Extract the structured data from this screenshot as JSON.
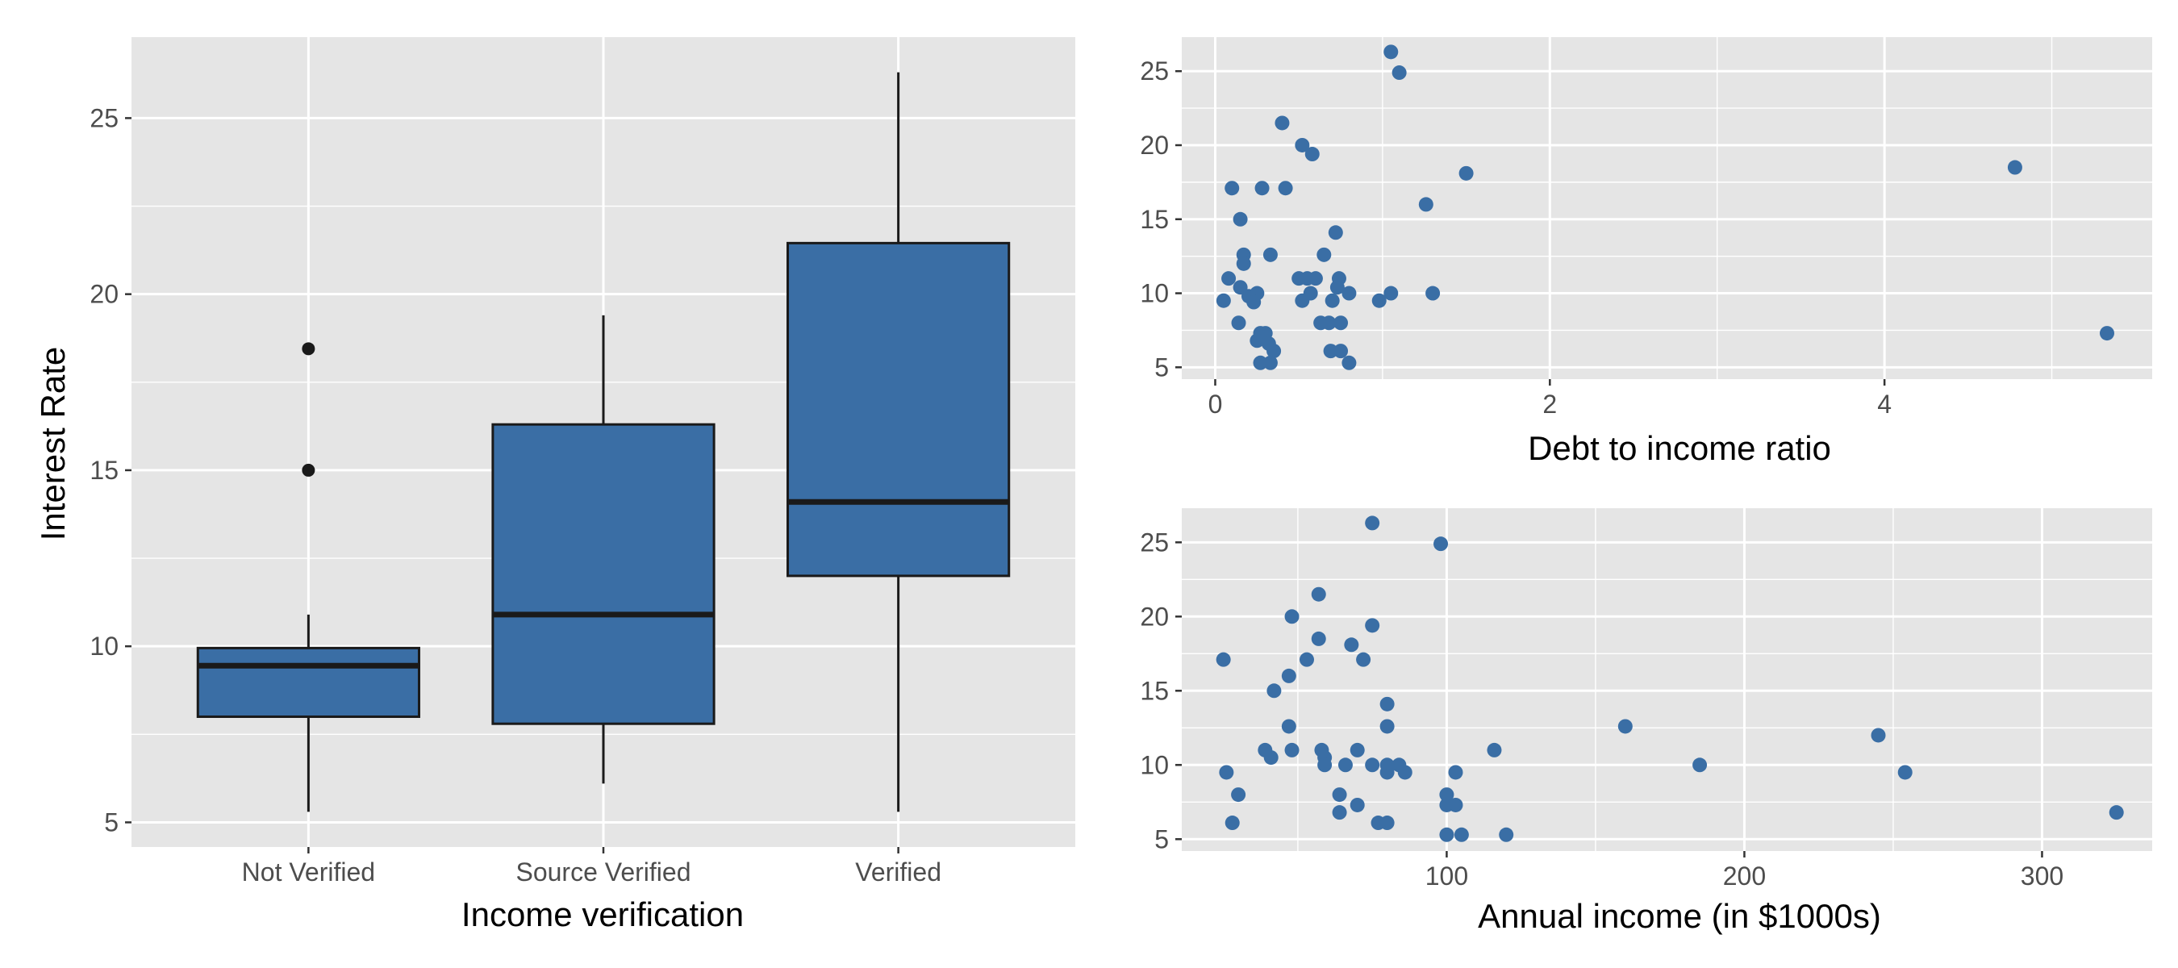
{
  "colors": {
    "panel_bg": "#e5e5e5",
    "grid_major": "#ffffff",
    "fill": "#3a6ea5",
    "outline": "#1a1a1a",
    "point": "#3a6ea5",
    "tick_text": "#4d4d4d"
  },
  "chart_data": [
    {
      "type": "box",
      "xlabel": "Income verification",
      "ylabel": "Interest Rate",
      "ylim": [
        4.3,
        27.3
      ],
      "yticks": [
        5,
        10,
        15,
        20,
        25
      ],
      "grid": true,
      "categories": [
        "Not Verified",
        "Source Verified",
        "Verified"
      ],
      "boxes": [
        {
          "min": 5.3,
          "q1": 8.0,
          "median": 9.45,
          "q3": 9.95,
          "max": 10.9,
          "outliers": [
            15.0,
            18.45
          ]
        },
        {
          "min": 6.1,
          "q1": 7.8,
          "median": 10.9,
          "q3": 16.3,
          "max": 19.4,
          "outliers": []
        },
        {
          "min": 5.3,
          "q1": 12.0,
          "median": 14.1,
          "q3": 21.45,
          "max": 26.3,
          "outliers": []
        }
      ]
    },
    {
      "type": "scatter",
      "xlabel": "Debt to income ratio",
      "ylabel": "",
      "xlim": [
        -0.2,
        5.6
      ],
      "ylim": [
        4.2,
        27.3
      ],
      "xticks": [
        0,
        2,
        4
      ],
      "yticks": [
        5,
        10,
        15,
        20,
        25
      ],
      "grid": true,
      "points": [
        [
          1.05,
          26.3
        ],
        [
          1.1,
          24.9
        ],
        [
          0.4,
          21.5
        ],
        [
          0.52,
          20.0
        ],
        [
          0.58,
          19.4
        ],
        [
          4.78,
          18.5
        ],
        [
          1.5,
          18.1
        ],
        [
          0.1,
          17.1
        ],
        [
          0.28,
          17.1
        ],
        [
          0.42,
          17.1
        ],
        [
          1.26,
          16.0
        ],
        [
          0.15,
          15.0
        ],
        [
          0.72,
          14.1
        ],
        [
          0.17,
          12.6
        ],
        [
          0.33,
          12.6
        ],
        [
          0.65,
          12.6
        ],
        [
          0.17,
          12.0
        ],
        [
          0.08,
          11.0
        ],
        [
          0.5,
          11.0
        ],
        [
          0.55,
          11.0
        ],
        [
          0.6,
          11.0
        ],
        [
          0.74,
          11.0
        ],
        [
          0.15,
          10.4
        ],
        [
          0.73,
          10.4
        ],
        [
          0.25,
          10.0
        ],
        [
          0.2,
          9.8
        ],
        [
          0.57,
          10.0
        ],
        [
          0.8,
          10.0
        ],
        [
          1.05,
          10.0
        ],
        [
          1.3,
          10.0
        ],
        [
          0.05,
          9.5
        ],
        [
          0.23,
          9.4
        ],
        [
          0.52,
          9.5
        ],
        [
          0.7,
          9.5
        ],
        [
          0.98,
          9.5
        ],
        [
          0.14,
          8.0
        ],
        [
          0.63,
          8.0
        ],
        [
          0.68,
          8.0
        ],
        [
          0.75,
          8.0
        ],
        [
          0.27,
          7.3
        ],
        [
          0.3,
          7.3
        ],
        [
          0.25,
          6.8
        ],
        [
          0.32,
          6.6
        ],
        [
          0.35,
          6.1
        ],
        [
          0.69,
          6.1
        ],
        [
          0.75,
          6.1
        ],
        [
          5.33,
          7.3
        ],
        [
          0.27,
          5.3
        ],
        [
          0.33,
          5.3
        ],
        [
          0.8,
          5.3
        ]
      ]
    },
    {
      "type": "scatter",
      "xlabel": "Annual income (in $1000s)",
      "ylabel": "",
      "xlim": [
        11,
        337
      ],
      "ylim": [
        4.2,
        27.3
      ],
      "xticks": [
        100,
        200,
        300
      ],
      "yticks": [
        5,
        10,
        15,
        20,
        25
      ],
      "grid": true,
      "points": [
        [
          75,
          26.3
        ],
        [
          98,
          24.9
        ],
        [
          57,
          21.5
        ],
        [
          48,
          20.0
        ],
        [
          75,
          19.4
        ],
        [
          57,
          18.5
        ],
        [
          68,
          18.1
        ],
        [
          25,
          17.1
        ],
        [
          53,
          17.1
        ],
        [
          72,
          17.1
        ],
        [
          47,
          16.0
        ],
        [
          42,
          15.0
        ],
        [
          80,
          14.1
        ],
        [
          47,
          12.6
        ],
        [
          80,
          12.6
        ],
        [
          160,
          12.6
        ],
        [
          245,
          12.0
        ],
        [
          39,
          11.0
        ],
        [
          48,
          11.0
        ],
        [
          58,
          11.0
        ],
        [
          70,
          11.0
        ],
        [
          116,
          11.0
        ],
        [
          41,
          10.5
        ],
        [
          59,
          10.5
        ],
        [
          59,
          10.0
        ],
        [
          66,
          10.0
        ],
        [
          75,
          10.0
        ],
        [
          80,
          10.0
        ],
        [
          84,
          10.0
        ],
        [
          185,
          10.0
        ],
        [
          26,
          9.5
        ],
        [
          80,
          9.5
        ],
        [
          86,
          9.5
        ],
        [
          103,
          9.5
        ],
        [
          254,
          9.5
        ],
        [
          30,
          8.0
        ],
        [
          64,
          8.0
        ],
        [
          100,
          8.0
        ],
        [
          64,
          6.8
        ],
        [
          70,
          7.3
        ],
        [
          100,
          7.3
        ],
        [
          103,
          7.3
        ],
        [
          325,
          6.8
        ],
        [
          28,
          6.1
        ],
        [
          77,
          6.1
        ],
        [
          80,
          6.1
        ],
        [
          100,
          5.3
        ],
        [
          105,
          5.3
        ],
        [
          120,
          5.3
        ]
      ]
    }
  ]
}
